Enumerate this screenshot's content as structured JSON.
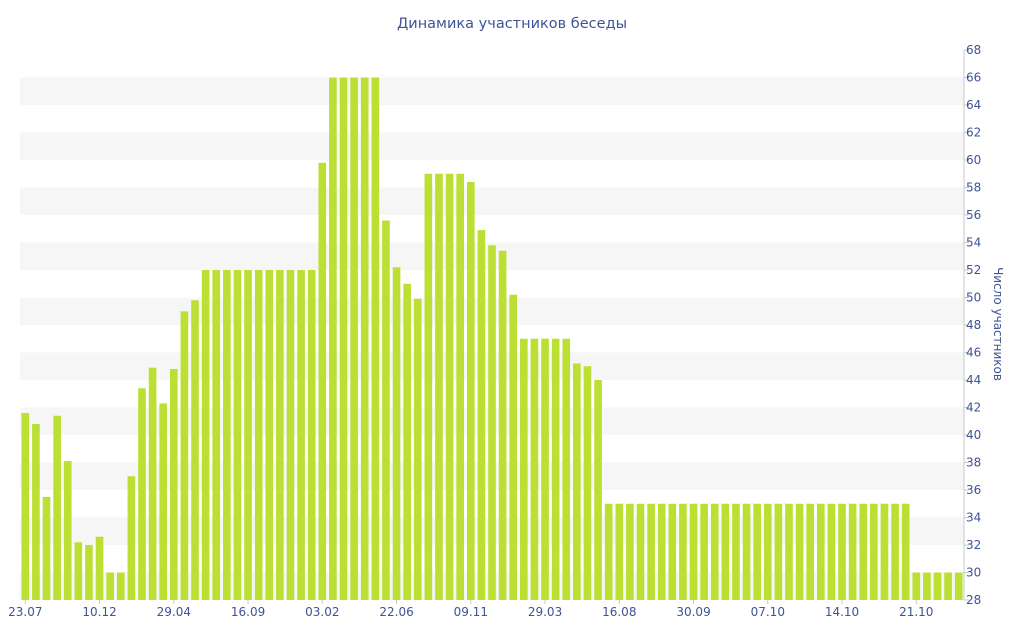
{
  "chart_data": {
    "type": "bar",
    "title": "Динамика участников беседы",
    "ylabel": "Число участников",
    "ylim": [
      28,
      68
    ],
    "y_axis_side": "right",
    "y_ticks": [
      "28",
      "30",
      "32",
      "34",
      "36",
      "38",
      "40",
      "42",
      "44",
      "46",
      "48",
      "50",
      "52",
      "54",
      "56",
      "58",
      "60",
      "62",
      "64",
      "66",
      "68"
    ],
    "x_tick_labels": [
      {
        "index": 0,
        "label": "23.07"
      },
      {
        "index": 7,
        "label": "10.12"
      },
      {
        "index": 14,
        "label": "29.04"
      },
      {
        "index": 21,
        "label": "16.09"
      },
      {
        "index": 28,
        "label": "03.02"
      },
      {
        "index": 35,
        "label": "22.06"
      },
      {
        "index": 42,
        "label": "09.11"
      },
      {
        "index": 49,
        "label": "29.03"
      },
      {
        "index": 56,
        "label": "16.08"
      },
      {
        "index": 63,
        "label": "30.09"
      },
      {
        "index": 70,
        "label": "07.10"
      },
      {
        "index": 77,
        "label": "14.10"
      },
      {
        "index": 84,
        "label": "21.10"
      }
    ],
    "bar_color": "#bbe033",
    "band_color": "#f6f6f6",
    "text_color": "#3f5395",
    "grid": "alternating-bands",
    "values": [
      41.6,
      40.8,
      35.5,
      41.4,
      38.1,
      32.2,
      32.0,
      32.6,
      30.0,
      30.0,
      37.0,
      43.4,
      44.9,
      42.3,
      44.8,
      49.0,
      49.8,
      52,
      52,
      52,
      52,
      52,
      52,
      52,
      52,
      52,
      52,
      52,
      59.8,
      66,
      66,
      66,
      66,
      66,
      55.6,
      52.2,
      51.0,
      49.9,
      59,
      59,
      59,
      59,
      58.4,
      54.9,
      53.8,
      53.4,
      50.2,
      47,
      47,
      47,
      47,
      47,
      45.2,
      45.0,
      44.0,
      35,
      35,
      35,
      35,
      35,
      35,
      35,
      35,
      35,
      35,
      35,
      35,
      35,
      35,
      35,
      35,
      35,
      35,
      35,
      35,
      35,
      35,
      35,
      35,
      35,
      35,
      35,
      35,
      35,
      30,
      30,
      30,
      30,
      30
    ]
  }
}
